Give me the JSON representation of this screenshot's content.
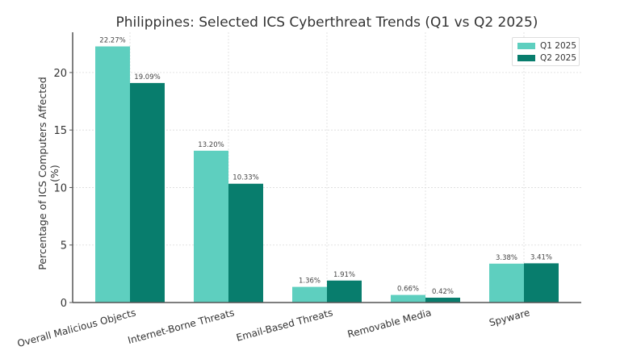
{
  "chart_data": {
    "type": "bar",
    "title": "Philippines: Selected ICS Cyberthreat Trends (Q1 vs Q2 2025)",
    "xlabel": "",
    "ylabel": "Percentage of ICS Computers Affected (%)",
    "categories": [
      "Overall Malicious Objects",
      "Internet-Borne Threats",
      "Email-Based Threats",
      "Removable Media",
      "Spyware"
    ],
    "series": [
      {
        "name": "Q1 2025",
        "color": "#5ecfbf",
        "values": [
          22.27,
          13.2,
          1.36,
          0.66,
          3.38
        ],
        "labels": [
          "22.27%",
          "13.20%",
          "1.36%",
          "0.66%",
          "3.38%"
        ]
      },
      {
        "name": "Q2 2025",
        "color": "#087d6d",
        "values": [
          19.09,
          10.33,
          1.91,
          0.42,
          3.41
        ],
        "labels": [
          "19.09%",
          "10.33%",
          "1.91%",
          "0.42%",
          "3.41%"
        ]
      }
    ],
    "yticks": [
      0,
      5,
      10,
      15,
      20
    ],
    "ylim": [
      0,
      23.5
    ],
    "grid": true,
    "legend_position": "upper right"
  }
}
